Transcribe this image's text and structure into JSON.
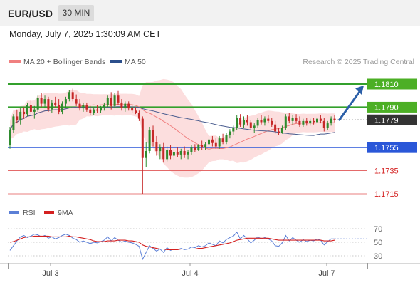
{
  "header": {
    "symbol": "EUR/USD",
    "timeframe": "30 MIN"
  },
  "timestamp": "Monday, July 7, 2025 1:30:09 AM CET",
  "legend": {
    "items": [
      {
        "label": "MA 20 + Bollinger Bands",
        "color": "#f08080"
      },
      {
        "label": "MA 50",
        "color": "#2b4f8c"
      }
    ]
  },
  "credit": "Research © 2025 Trading Central",
  "colors": {
    "up": "#2e8b2e",
    "down": "#c62828",
    "green_level": "#33a02c",
    "blue_level": "#2a57d8",
    "red_level": "#e05555",
    "band": "#fbd3d3",
    "arrow": "#2b5fa8"
  },
  "chart_data": [
    {
      "type": "candlestick",
      "title": "EUR/USD",
      "x_ticks": [
        "Jul 3",
        "Jul 4",
        "Jul 7"
      ],
      "y_levels": [
        {
          "value": 1.181,
          "label": "1.1810",
          "style": "green-badge"
        },
        {
          "value": 1.179,
          "label": "1.1790",
          "style": "green-badge"
        },
        {
          "value": 1.1779,
          "label": "1.1779",
          "style": "dark-badge-current"
        },
        {
          "value": 1.1755,
          "label": "1.1755",
          "style": "blue-badge"
        },
        {
          "value": 1.1735,
          "label": "1.1735",
          "style": "red-text"
        },
        {
          "value": 1.1715,
          "label": "1.1715",
          "style": "red-text"
        }
      ],
      "current_price": 1.1779,
      "projection": {
        "from": 1.1779,
        "to": 1.181
      },
      "ylim": [
        1.171,
        1.1835
      ],
      "candles": [
        [
          1.1757,
          1.1773,
          1.1754,
          1.177
        ],
        [
          1.177,
          1.1784,
          1.1768,
          1.1782
        ],
        [
          1.1782,
          1.1788,
          1.1776,
          1.1779
        ],
        [
          1.1779,
          1.1789,
          1.1775,
          1.1786
        ],
        [
          1.1786,
          1.179,
          1.178,
          1.1784
        ],
        [
          1.1784,
          1.1794,
          1.1782,
          1.1792
        ],
        [
          1.1792,
          1.1796,
          1.1784,
          1.1786
        ],
        [
          1.1786,
          1.1791,
          1.178,
          1.1788
        ],
        [
          1.1788,
          1.18,
          1.1786,
          1.1798
        ],
        [
          1.1798,
          1.1802,
          1.179,
          1.1793
        ],
        [
          1.1793,
          1.18,
          1.1789,
          1.1797
        ],
        [
          1.1797,
          1.1799,
          1.1786,
          1.1788
        ],
        [
          1.1788,
          1.1796,
          1.1785,
          1.1794
        ],
        [
          1.1794,
          1.1799,
          1.179,
          1.1792
        ],
        [
          1.1792,
          1.1797,
          1.1784,
          1.1786
        ],
        [
          1.1786,
          1.1795,
          1.1784,
          1.1793
        ],
        [
          1.1793,
          1.1799,
          1.1789,
          1.1797
        ],
        [
          1.1797,
          1.1805,
          1.1795,
          1.1803
        ],
        [
          1.1803,
          1.1806,
          1.1795,
          1.1797
        ],
        [
          1.1797,
          1.1801,
          1.1791,
          1.1793
        ],
        [
          1.1793,
          1.1797,
          1.1787,
          1.1789
        ],
        [
          1.1789,
          1.1794,
          1.1786,
          1.1792
        ],
        [
          1.1792,
          1.1794,
          1.1786,
          1.1788
        ],
        [
          1.1788,
          1.1791,
          1.1783,
          1.1785
        ],
        [
          1.1785,
          1.179,
          1.1783,
          1.1788
        ],
        [
          1.1788,
          1.1792,
          1.1785,
          1.1787
        ],
        [
          1.1787,
          1.1791,
          1.1785,
          1.179
        ],
        [
          1.179,
          1.1794,
          1.1787,
          1.1792
        ],
        [
          1.1792,
          1.18,
          1.179,
          1.1798
        ],
        [
          1.1798,
          1.1803,
          1.1788,
          1.1791
        ],
        [
          1.1791,
          1.1802,
          1.1789,
          1.18
        ],
        [
          1.18,
          1.1804,
          1.1792,
          1.1794
        ],
        [
          1.1794,
          1.1797,
          1.1787,
          1.1789
        ],
        [
          1.1789,
          1.1795,
          1.1786,
          1.1793
        ],
        [
          1.1793,
          1.1795,
          1.1787,
          1.1789
        ],
        [
          1.1789,
          1.1792,
          1.1785,
          1.1787
        ],
        [
          1.1787,
          1.179,
          1.1784,
          1.1785
        ],
        [
          1.1785,
          1.1787,
          1.1778,
          1.178
        ],
        [
          1.178,
          1.1782,
          1.1715,
          1.1746
        ],
        [
          1.1746,
          1.176,
          1.1738,
          1.1752
        ],
        [
          1.1752,
          1.1773,
          1.175,
          1.177
        ],
        [
          1.177,
          1.1774,
          1.1756,
          1.176
        ],
        [
          1.176,
          1.1765,
          1.1748,
          1.1752
        ],
        [
          1.1752,
          1.1758,
          1.1745,
          1.1755
        ],
        [
          1.1755,
          1.1759,
          1.1742,
          1.1745
        ],
        [
          1.1745,
          1.1756,
          1.1743,
          1.1753
        ],
        [
          1.1753,
          1.1757,
          1.1745,
          1.1748
        ],
        [
          1.1748,
          1.1753,
          1.1744,
          1.1751
        ],
        [
          1.1751,
          1.1755,
          1.1747,
          1.1749
        ],
        [
          1.1749,
          1.1754,
          1.1745,
          1.1752
        ],
        [
          1.1752,
          1.1756,
          1.1746,
          1.1749
        ],
        [
          1.1749,
          1.1753,
          1.1745,
          1.1751
        ],
        [
          1.1751,
          1.1757,
          1.1749,
          1.1755
        ],
        [
          1.1755,
          1.1758,
          1.1751,
          1.1753
        ],
        [
          1.1753,
          1.1758,
          1.1752,
          1.1757
        ],
        [
          1.1757,
          1.1761,
          1.1753,
          1.1755
        ],
        [
          1.1755,
          1.176,
          1.1753,
          1.1758
        ],
        [
          1.1758,
          1.1764,
          1.1756,
          1.1762
        ],
        [
          1.1762,
          1.1765,
          1.1756,
          1.1759
        ],
        [
          1.1759,
          1.1763,
          1.1754,
          1.1756
        ],
        [
          1.1756,
          1.1765,
          1.1754,
          1.1763
        ],
        [
          1.1763,
          1.1767,
          1.1758,
          1.176
        ],
        [
          1.176,
          1.1768,
          1.1758,
          1.1766
        ],
        [
          1.1766,
          1.1771,
          1.1763,
          1.1769
        ],
        [
          1.1769,
          1.1774,
          1.1766,
          1.1772
        ],
        [
          1.1772,
          1.1783,
          1.177,
          1.1781
        ],
        [
          1.1781,
          1.1784,
          1.1773,
          1.1775
        ],
        [
          1.1775,
          1.1782,
          1.1772,
          1.1779
        ],
        [
          1.1779,
          1.1783,
          1.1774,
          1.1777
        ],
        [
          1.1777,
          1.1779,
          1.177,
          1.1772
        ],
        [
          1.1772,
          1.1776,
          1.1768,
          1.1774
        ],
        [
          1.1774,
          1.1781,
          1.1772,
          1.1779
        ],
        [
          1.1779,
          1.1783,
          1.1775,
          1.1777
        ],
        [
          1.1777,
          1.1782,
          1.1774,
          1.178
        ],
        [
          1.178,
          1.1783,
          1.1776,
          1.1778
        ],
        [
          1.1778,
          1.1781,
          1.1773,
          1.1775
        ],
        [
          1.1775,
          1.1778,
          1.1767,
          1.1769
        ],
        [
          1.1769,
          1.1772,
          1.1766,
          1.1768
        ],
        [
          1.1768,
          1.1774,
          1.1767,
          1.1772
        ],
        [
          1.1772,
          1.1784,
          1.177,
          1.1782
        ],
        [
          1.1782,
          1.1785,
          1.1776,
          1.1778
        ],
        [
          1.1778,
          1.1783,
          1.1775,
          1.1781
        ],
        [
          1.1781,
          1.1784,
          1.1776,
          1.1778
        ],
        [
          1.1778,
          1.1782,
          1.1773,
          1.1775
        ],
        [
          1.1775,
          1.178,
          1.1773,
          1.1778
        ],
        [
          1.1778,
          1.1781,
          1.1774,
          1.1776
        ],
        [
          1.1776,
          1.178,
          1.1774,
          1.1778
        ],
        [
          1.1778,
          1.1781,
          1.1775,
          1.1777
        ],
        [
          1.1777,
          1.1782,
          1.1775,
          1.178
        ],
        [
          1.178,
          1.1783,
          1.1776,
          1.1778
        ],
        [
          1.1778,
          1.1781,
          1.1769,
          1.1772
        ],
        [
          1.1772,
          1.1778,
          1.177,
          1.1776
        ],
        [
          1.1776,
          1.1782,
          1.1774,
          1.178
        ],
        [
          1.178,
          1.1783,
          1.1777,
          1.1779
        ]
      ]
    },
    {
      "type": "line",
      "title": "RSI",
      "series": [
        {
          "name": "RSI",
          "color": "#5b7fd6",
          "values": [
            38,
            45,
            52,
            58,
            60,
            57,
            59,
            62,
            61,
            58,
            60,
            56,
            58,
            55,
            57,
            60,
            62,
            60,
            56,
            54,
            50,
            52,
            50,
            48,
            50,
            49,
            51,
            53,
            58,
            52,
            57,
            53,
            50,
            52,
            50,
            49,
            47,
            44,
            25,
            35,
            45,
            41,
            37,
            40,
            35,
            42,
            38,
            40,
            39,
            41,
            39,
            40,
            43,
            42,
            45,
            43,
            45,
            49,
            47,
            45,
            52,
            49,
            54,
            57,
            59,
            65,
            55,
            60,
            55,
            49,
            53,
            58,
            55,
            57,
            55,
            52,
            45,
            44,
            49,
            60,
            52,
            57,
            53,
            50,
            54,
            51,
            53,
            52,
            55,
            53,
            46,
            51,
            55,
            55
          ]
        },
        {
          "name": "9MA",
          "color": "#d42020",
          "values": [
            50,
            51,
            53,
            55,
            57,
            58,
            58,
            59,
            59,
            59,
            59,
            59,
            58,
            58,
            58,
            58,
            58,
            59,
            58,
            58,
            57,
            56,
            55,
            54,
            52,
            51,
            51,
            51,
            52,
            52,
            52,
            53,
            53,
            53,
            52,
            52,
            51,
            50,
            46,
            44,
            43,
            42,
            41,
            40,
            40,
            39,
            39,
            39,
            39,
            40,
            40,
            40,
            40,
            40,
            41,
            41,
            42,
            43,
            44,
            45,
            46,
            47,
            48,
            49,
            51,
            53,
            54,
            55,
            56,
            56,
            56,
            56,
            56,
            56,
            56,
            55,
            54,
            53,
            53,
            53,
            53,
            53,
            53,
            53,
            53,
            53,
            53,
            53,
            53,
            53,
            52,
            52,
            52,
            53
          ]
        }
      ],
      "y_ticks": [
        "70",
        "50",
        "30"
      ],
      "ylim": [
        20,
        80
      ]
    }
  ]
}
